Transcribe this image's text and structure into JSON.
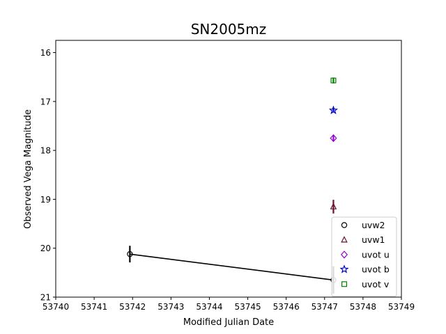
{
  "chart_data": {
    "type": "scatter",
    "title": "SN2005mz",
    "xlabel": "Modified Julian Date",
    "ylabel": "Observed Vega Magnitude",
    "xlim": [
      53740,
      53749
    ],
    "ylim": [
      21,
      15.75
    ],
    "y_inverted": true,
    "x_ticks": [
      "53740",
      "53741",
      "53742",
      "53743",
      "53744",
      "53745",
      "53746",
      "53747",
      "53748",
      "53749"
    ],
    "y_ticks": [
      "16",
      "17",
      "18",
      "19",
      "20",
      "21"
    ],
    "grid": false,
    "legend_position": "lower-right",
    "series": [
      {
        "name": "uvw2",
        "marker": "circle",
        "color": "#000000",
        "connected": true,
        "points": [
          {
            "x": 53741.93,
            "y": 20.12,
            "err": 0.17
          },
          {
            "x": 53747.23,
            "y": 20.65,
            "err": 0.28
          }
        ]
      },
      {
        "name": "uvw1",
        "marker": "triangle",
        "color": "#6b0f2a",
        "connected": false,
        "points": [
          {
            "x": 53747.23,
            "y": 19.15,
            "err": 0.14
          }
        ]
      },
      {
        "name": "uvot u",
        "marker": "diamond",
        "color": "#9400d3",
        "connected": false,
        "points": [
          {
            "x": 53747.23,
            "y": 17.75,
            "err": 0.06
          }
        ]
      },
      {
        "name": "uvot b",
        "marker": "star",
        "color": "#0000cd",
        "connected": false,
        "points": [
          {
            "x": 53747.23,
            "y": 17.18,
            "err": 0.04
          }
        ]
      },
      {
        "name": "uvot v",
        "marker": "square",
        "color": "#008000",
        "connected": false,
        "points": [
          {
            "x": 53747.23,
            "y": 16.57,
            "err": 0.06
          }
        ]
      }
    ]
  }
}
